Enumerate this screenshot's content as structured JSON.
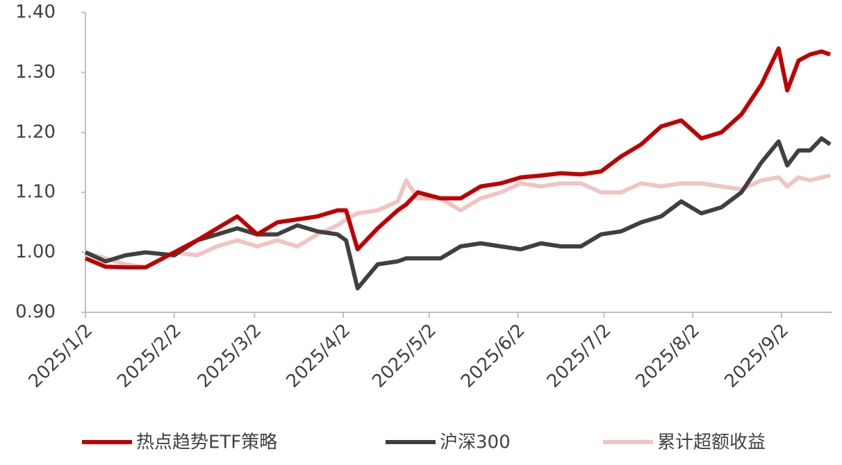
{
  "chart_data": {
    "type": "line",
    "x": [
      "2025/1/2",
      "2025/1/9",
      "2025/1/16",
      "2025/1/23",
      "2025/2/2",
      "2025/2/10",
      "2025/2/17",
      "2025/2/24",
      "2025/3/3",
      "2025/3/10",
      "2025/3/17",
      "2025/3/24",
      "2025/3/31",
      "2025/4/3",
      "2025/4/7",
      "2025/4/14",
      "2025/4/21",
      "2025/4/24",
      "2025/4/28",
      "2025/5/6",
      "2025/5/13",
      "2025/5/20",
      "2025/5/27",
      "2025/6/3",
      "2025/6/10",
      "2025/6/17",
      "2025/6/24",
      "2025/7/1",
      "2025/7/8",
      "2025/7/15",
      "2025/7/22",
      "2025/7/29",
      "2025/8/5",
      "2025/8/12",
      "2025/8/19",
      "2025/8/26",
      "2025/9/1",
      "2025/9/4",
      "2025/9/8",
      "2025/9/12",
      "2025/9/16",
      "2025/9/19"
    ],
    "series": [
      {
        "name": "热点趋势ETF策略",
        "color": "#c00000",
        "values": [
          0.99,
          0.976,
          0.975,
          0.975,
          1.0,
          1.02,
          1.04,
          1.06,
          1.03,
          1.05,
          1.055,
          1.06,
          1.07,
          1.07,
          1.005,
          1.04,
          1.07,
          1.08,
          1.1,
          1.09,
          1.09,
          1.11,
          1.115,
          1.125,
          1.128,
          1.132,
          1.13,
          1.135,
          1.16,
          1.18,
          1.21,
          1.22,
          1.19,
          1.2,
          1.23,
          1.28,
          1.34,
          1.27,
          1.32,
          1.33,
          1.335,
          1.33
        ]
      },
      {
        "name": "沪深300",
        "color": "#404040",
        "values": [
          1.0,
          0.985,
          0.995,
          1.0,
          0.995,
          1.02,
          1.03,
          1.04,
          1.03,
          1.03,
          1.045,
          1.035,
          1.03,
          1.02,
          0.94,
          0.98,
          0.985,
          0.99,
          0.99,
          0.99,
          1.01,
          1.015,
          1.01,
          1.005,
          1.015,
          1.01,
          1.01,
          1.03,
          1.035,
          1.05,
          1.06,
          1.085,
          1.065,
          1.075,
          1.1,
          1.15,
          1.185,
          1.145,
          1.17,
          1.17,
          1.19,
          1.18
        ]
      },
      {
        "name": "累计超额收益",
        "color": "#f0c4c4",
        "values": [
          1.0,
          0.99,
          0.98,
          0.975,
          1.0,
          0.995,
          1.01,
          1.02,
          1.01,
          1.02,
          1.01,
          1.03,
          1.045,
          1.055,
          1.065,
          1.07,
          1.085,
          1.12,
          1.09,
          1.09,
          1.07,
          1.09,
          1.1,
          1.115,
          1.11,
          1.115,
          1.115,
          1.1,
          1.1,
          1.115,
          1.11,
          1.115,
          1.115,
          1.11,
          1.105,
          1.12,
          1.125,
          1.11,
          1.125,
          1.12,
          1.125,
          1.128
        ]
      }
    ],
    "xlim": [
      "2025/1/2",
      "2025/9/19"
    ],
    "xticks": [
      "2025/1/2",
      "2025/2/2",
      "2025/3/2",
      "2025/4/2",
      "2025/5/2",
      "2025/6/2",
      "2025/7/2",
      "2025/8/2",
      "2025/9/2"
    ],
    "ylim": [
      0.9,
      1.4
    ],
    "yticks": [
      {
        "value": 0.9,
        "label": "0.90"
      },
      {
        "value": 1.0,
        "label": "1.00"
      },
      {
        "value": 1.1,
        "label": "1.10"
      },
      {
        "value": 1.2,
        "label": "1.20"
      },
      {
        "value": 1.3,
        "label": "1.30"
      },
      {
        "value": 1.4,
        "label": "1.40"
      }
    ],
    "grid": false,
    "legend": "bottom"
  }
}
